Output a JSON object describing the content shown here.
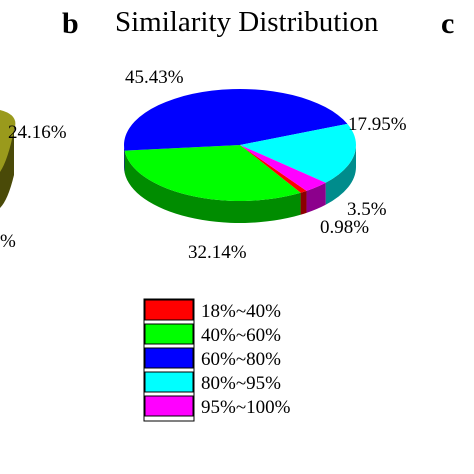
{
  "panel_letters": {
    "left": "b",
    "right": "c"
  },
  "chart_data": [
    {
      "type": "pie",
      "title": "Similarity Distribution",
      "categories": [
        "18%~40%",
        "40%~60%",
        "60%~80%",
        "80%~95%",
        "95%~100%"
      ],
      "values": [
        0.98,
        32.14,
        45.43,
        17.95,
        3.5
      ],
      "value_labels": [
        "0.98%",
        "32.14%",
        "45.43%",
        "17.95%",
        "3.5%"
      ],
      "colors": [
        "#ff0000",
        "#00ff00",
        "#0000ff",
        "#00ffff",
        "#ff00ff"
      ],
      "style": "3d",
      "legend_position": "bottom"
    }
  ],
  "left_partial": {
    "labels": [
      "24.16%",
      "%"
    ],
    "color": "#9a9a1c"
  }
}
